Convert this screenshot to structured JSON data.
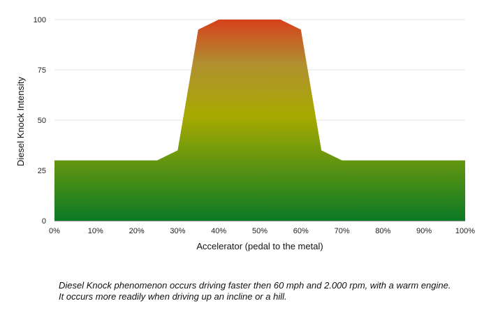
{
  "chart_data": {
    "type": "area",
    "x": [
      0,
      5,
      10,
      15,
      20,
      25,
      30,
      35,
      40,
      45,
      50,
      55,
      60,
      65,
      70,
      75,
      80,
      85,
      90,
      95,
      100
    ],
    "y": [
      30,
      30,
      30,
      30,
      30,
      30,
      35,
      95,
      100,
      100,
      100,
      100,
      95,
      35,
      30,
      30,
      30,
      30,
      30,
      30,
      30
    ],
    "xlim": [
      0,
      100
    ],
    "ylim": [
      0,
      100
    ],
    "x_ticks": [
      "0%",
      "10%",
      "20%",
      "30%",
      "40%",
      "50%",
      "60%",
      "70%",
      "80%",
      "90%",
      "100%"
    ],
    "y_ticks": [
      "0",
      "25",
      "50",
      "75",
      "100"
    ],
    "xlabel": "Accelerator (pedal to the metal)",
    "ylabel": "Diesel Knock Intensity",
    "grid": true,
    "fill_colors": {
      "low": "#0a7a25",
      "mid": "#a8aa00",
      "high": "#d6401c"
    }
  },
  "caption": {
    "line1": "Diesel Knock phenomenon occurs driving faster then 60 mph and 2.000 rpm, with a warm engine.",
    "line2": "It occurs more readily when driving up an incline or a hill."
  }
}
